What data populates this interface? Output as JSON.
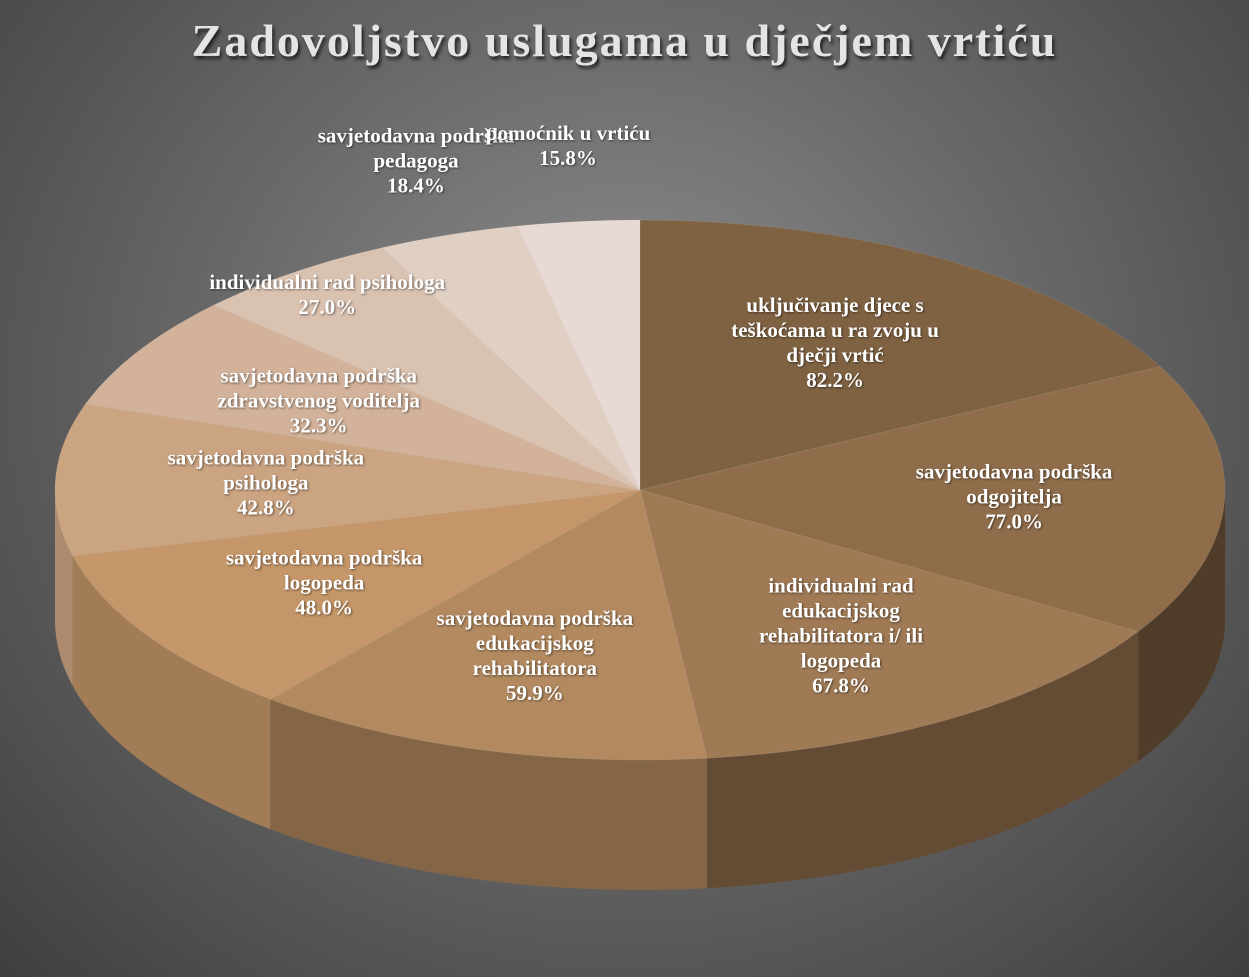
{
  "chart_data": {
    "type": "pie3d",
    "title": "Zadovoljstvo uslugama u dječjem vrtiću",
    "categories": [
      "uključivanje djece s teškoćama u ra zvoju u dječji vrtić",
      "savjetodavna podrška odgojitelja",
      "individualni rad edukacijskog rehabilitatora i/ ili logopeda",
      "savjetodavna podrška edukacijskog rehabilitatora",
      "savjetodavna podrška logopeda",
      "savjetodavna podrška psihologa",
      "savjetodavna podrška zdravstvenog voditelja",
      "individualni rad psihologa",
      "savjetodavna podrška pedagoga",
      "pomoćnik u vrtiću"
    ],
    "values": [
      82.2,
      77.0,
      67.8,
      59.9,
      48.0,
      42.8,
      32.3,
      27.0,
      18.4,
      15.8
    ],
    "value_labels": [
      "82.2%",
      "77.0%",
      "67.8%",
      "59.9%",
      "48.0%",
      "42.8%",
      "32.3%",
      "27.0%",
      "18.4%",
      "15.8%"
    ],
    "colors": [
      "#7f6242",
      "#8f6d4b",
      "#a07a55",
      "#b38a60",
      "#c49669",
      "#cba482",
      "#d2b29a",
      "#dac2b1",
      "#e0cfc3",
      "#e8d9d4"
    ]
  }
}
